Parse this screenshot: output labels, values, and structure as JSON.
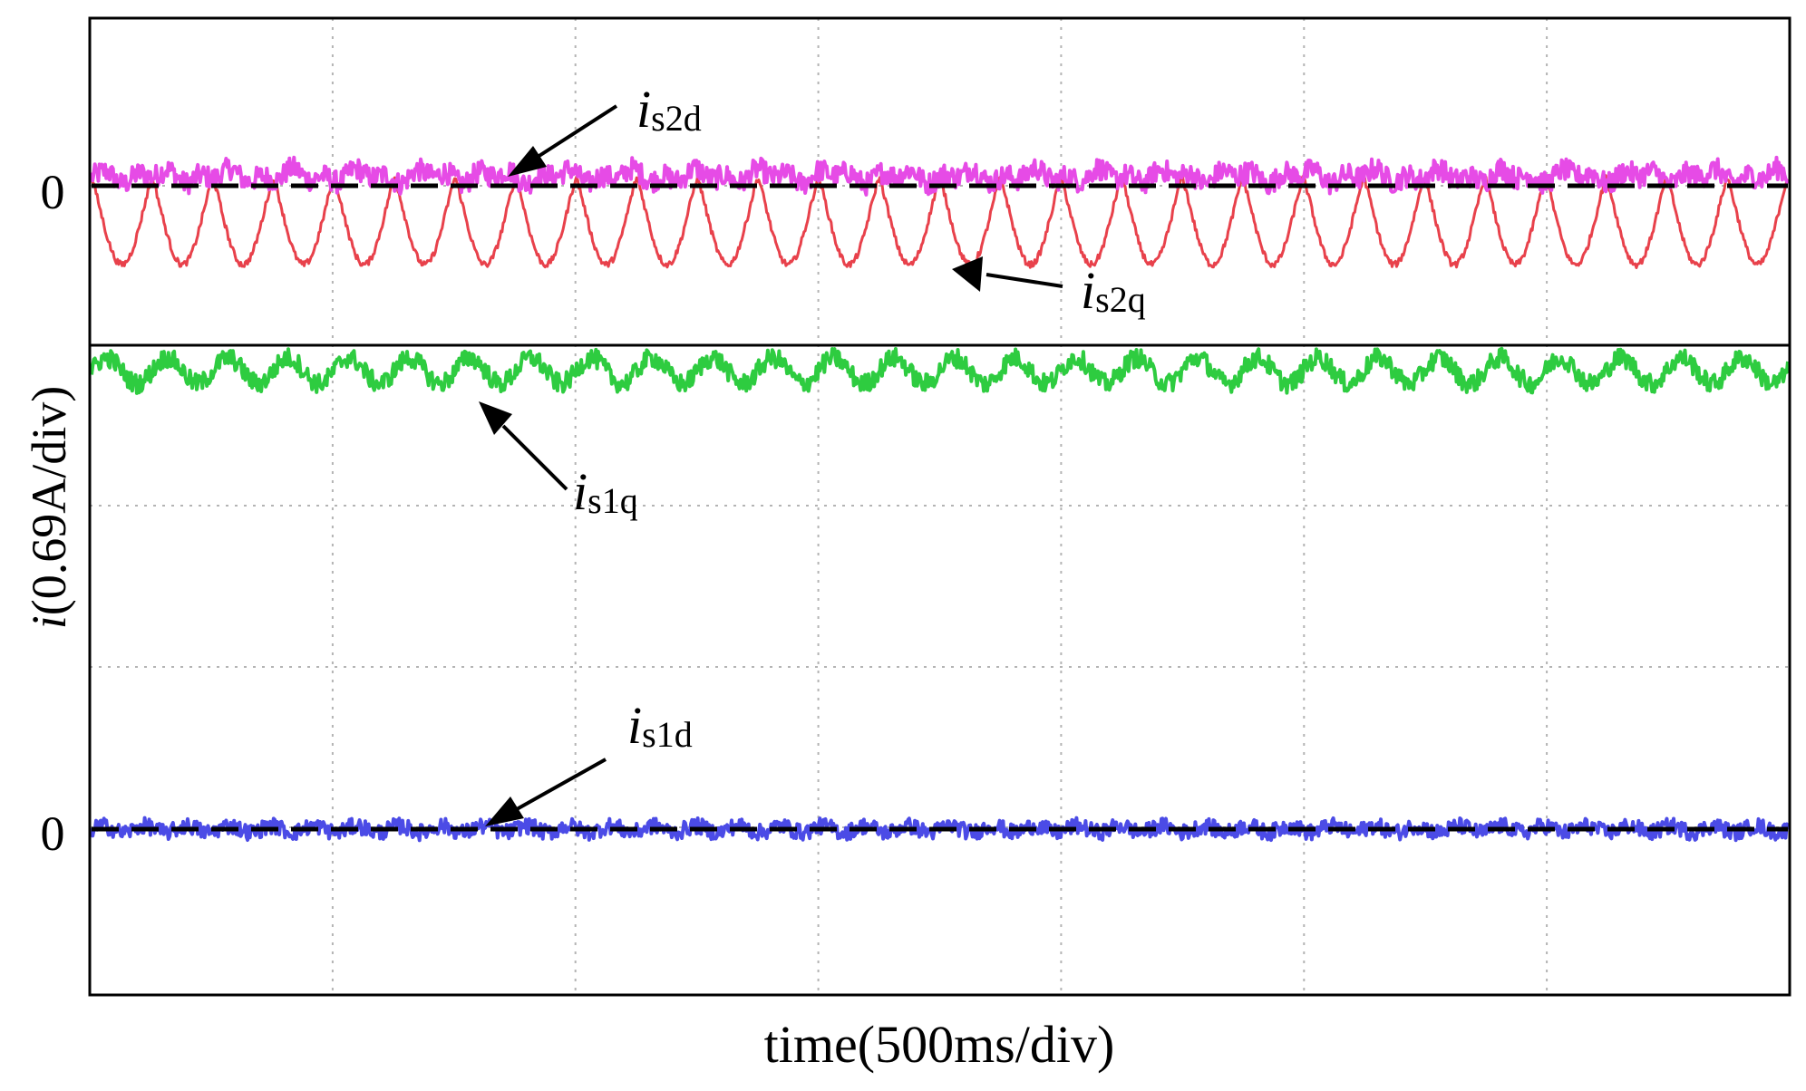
{
  "chart_data": [
    {
      "type": "line",
      "panel": "upper",
      "xlabel": "time(500ms/div)",
      "x_divisions": 7,
      "y_tick_labels": [
        "0"
      ],
      "series": [
        {
          "name": "is2d",
          "label_main": "i",
          "label_sub": "s2d",
          "color": "#e64be6",
          "mean_div": 0.06,
          "ripple_amp_div": 0.05,
          "noise_amp_div": 0.07,
          "ripple_cycles": 40,
          "waveform": "ripple"
        },
        {
          "name": "is2q",
          "label_main": "i",
          "label_sub": "s2q",
          "color": "#e8414b",
          "mean_div": -0.22,
          "ripple_amp_div": 0.27,
          "noise_amp_div": 0.02,
          "ripple_cycles": 28,
          "waveform": "rectified-sine"
        }
      ]
    },
    {
      "type": "line",
      "panel": "lower",
      "ylabel_main": "i",
      "ylabel_rest": "(0.69A/div)",
      "x_divisions": 7,
      "y_tick_labels": [
        "0"
      ],
      "series": [
        {
          "name": "is1q",
          "label_main": "i",
          "label_sub": "s1q",
          "color": "#2ecc40",
          "mean_div": 2.85,
          "ripple_amp_div": 0.08,
          "noise_amp_div": 0.06,
          "ripple_cycles": 28,
          "waveform": "sine"
        },
        {
          "name": "is1d",
          "label_main": "i",
          "label_sub": "s1d",
          "color": "#4b4be6",
          "mean_div": 0.0,
          "ripple_amp_div": 0.02,
          "noise_amp_div": 0.05,
          "ripple_cycles": 40,
          "waveform": "noise"
        }
      ]
    }
  ],
  "labels": {
    "zero": "0",
    "xlabel": "time(500ms/div)",
    "ylabel_main": "i",
    "ylabel_rest": "(0.69A/div)",
    "is2d_main": "i",
    "is2d_sub": "s2d",
    "is2q_main": "i",
    "is2q_sub": "s2q",
    "is1q_main": "i",
    "is1q_sub": "s1q",
    "is1d_main": "i",
    "is1d_sub": "s1d"
  }
}
